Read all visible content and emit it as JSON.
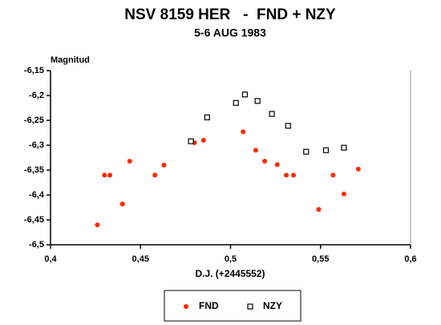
{
  "chart_data": {
    "type": "scatter",
    "title": "NSV 8159 HER   -  FND + NZY",
    "subtitle": "5-6 AUG 1983",
    "y_label": "Magnitud",
    "x_label": "D.J. (+2445552)",
    "xlim": [
      0.4,
      0.6
    ],
    "ylim": [
      -6.5,
      -6.15
    ],
    "xticks": [
      {
        "value": 0.4,
        "label": "0,4"
      },
      {
        "value": 0.45,
        "label": "0,45"
      },
      {
        "value": 0.5,
        "label": "0,5"
      },
      {
        "value": 0.55,
        "label": "0,55"
      },
      {
        "value": 0.6,
        "label": "0,6"
      }
    ],
    "yticks": [
      {
        "value": -6.15,
        "label": "-6,15"
      },
      {
        "value": -6.2,
        "label": "-6,2"
      },
      {
        "value": -6.25,
        "label": "-6,25"
      },
      {
        "value": -6.3,
        "label": "-6,3"
      },
      {
        "value": -6.35,
        "label": "-6,35"
      },
      {
        "value": -6.4,
        "label": "-6,4"
      },
      {
        "value": -6.45,
        "label": "-6,45"
      },
      {
        "value": -6.5,
        "label": "-6,5"
      }
    ],
    "series": [
      {
        "name": "FND",
        "color": "#ff2a00",
        "marker": "dot",
        "x": [
          0.426,
          0.43,
          0.433,
          0.44,
          0.444,
          0.458,
          0.463,
          0.48,
          0.485,
          0.507,
          0.514,
          0.519,
          0.526,
          0.531,
          0.535,
          0.549,
          0.557,
          0.563,
          0.571
        ],
        "values": [
          -6.46,
          -6.36,
          -6.36,
          -6.418,
          -6.332,
          -6.36,
          -6.34,
          -6.295,
          -6.29,
          -6.273,
          -6.31,
          -6.332,
          -6.339,
          -6.36,
          -6.36,
          -6.429,
          -6.36,
          -6.398,
          -6.348
        ]
      },
      {
        "name": "NZY",
        "color": "#000000",
        "marker": "square",
        "x": [
          0.478,
          0.487,
          0.503,
          0.508,
          0.515,
          0.523,
          0.532,
          0.542,
          0.553,
          0.563
        ],
        "values": [
          -6.292,
          -6.244,
          -6.215,
          -6.198,
          -6.211,
          -6.237,
          -6.261,
          -6.313,
          -6.31,
          -6.305
        ]
      }
    ]
  }
}
